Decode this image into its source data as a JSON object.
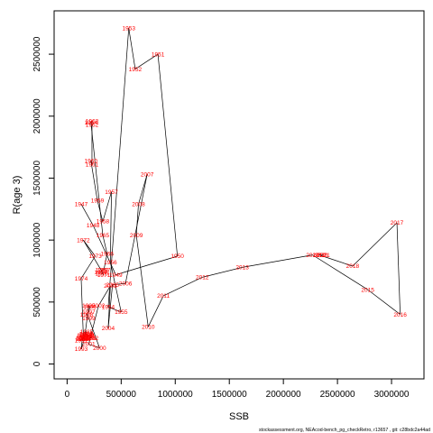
{
  "chart_data": {
    "type": "line",
    "title": "",
    "xlabel": "SSB",
    "ylabel": "R(age 3)",
    "xlim": [
      -120000,
      3300000
    ],
    "ylim": [
      -120000,
      2850000
    ],
    "x_ticks": [
      0,
      500000,
      1000000,
      1500000,
      2000000,
      2500000,
      3000000
    ],
    "y_ticks": [
      0,
      500000,
      1000000,
      1500000,
      2000000,
      2500000
    ],
    "grid": false,
    "line_color": "#000000",
    "label_color": "#ff0000",
    "points": [
      {
        "year": "1947",
        "x": 130000,
        "y": 1290000
      },
      {
        "year": "1948",
        "x": 240000,
        "y": 1120000
      },
      {
        "year": "1949",
        "x": 450000,
        "y": 720000
      },
      {
        "year": "1950",
        "x": 1020000,
        "y": 870000
      },
      {
        "year": "1951",
        "x": 840000,
        "y": 2500000
      },
      {
        "year": "1952",
        "x": 630000,
        "y": 2380000
      },
      {
        "year": "1953",
        "x": 570000,
        "y": 2710000
      },
      {
        "year": "1954",
        "x": 380000,
        "y": 460000
      },
      {
        "year": "1955",
        "x": 500000,
        "y": 420000
      },
      {
        "year": "1956",
        "x": 400000,
        "y": 820000
      },
      {
        "year": "1957",
        "x": 410000,
        "y": 1390000
      },
      {
        "year": "1958",
        "x": 330000,
        "y": 1150000
      },
      {
        "year": "1959",
        "x": 280000,
        "y": 1320000
      },
      {
        "year": "1960",
        "x": 220000,
        "y": 1640000
      },
      {
        "year": "1961",
        "x": 230000,
        "y": 1610000
      },
      {
        "year": "1962",
        "x": 230000,
        "y": 1930000
      },
      {
        "year": "1963",
        "x": 230000,
        "y": 1960000
      },
      {
        "year": "1964",
        "x": 220000,
        "y": 1950000
      },
      {
        "year": "1965",
        "x": 330000,
        "y": 1040000
      },
      {
        "year": "1966",
        "x": 370000,
        "y": 890000
      },
      {
        "year": "1967",
        "x": 340000,
        "y": 760000
      },
      {
        "year": "1968",
        "x": 320000,
        "y": 760000
      },
      {
        "year": "1969",
        "x": 310000,
        "y": 740000
      },
      {
        "year": "1970",
        "x": 320000,
        "y": 730000
      },
      {
        "year": "1971",
        "x": 340000,
        "y": 720000
      },
      {
        "year": "1972",
        "x": 150000,
        "y": 1000000
      },
      {
        "year": "1973",
        "x": 260000,
        "y": 870000
      },
      {
        "year": "1974",
        "x": 130000,
        "y": 690000
      },
      {
        "year": "1975",
        "x": 150000,
        "y": 230000
      },
      {
        "year": "1976",
        "x": 160000,
        "y": 230000
      },
      {
        "year": "1977",
        "x": 190000,
        "y": 230000
      },
      {
        "year": "1978",
        "x": 190000,
        "y": 230000
      },
      {
        "year": "1979",
        "x": 180000,
        "y": 240000
      },
      {
        "year": "1980",
        "x": 190000,
        "y": 230000
      },
      {
        "year": "1981",
        "x": 200000,
        "y": 220000
      },
      {
        "year": "1982",
        "x": 230000,
        "y": 210000
      },
      {
        "year": "1983",
        "x": 210000,
        "y": 210000
      },
      {
        "year": "1984",
        "x": 170000,
        "y": 240000
      },
      {
        "year": "1985",
        "x": 180000,
        "y": 260000
      },
      {
        "year": "1986",
        "x": 150000,
        "y": 220000
      },
      {
        "year": "1987",
        "x": 140000,
        "y": 200000
      },
      {
        "year": "1988",
        "x": 160000,
        "y": 200000
      },
      {
        "year": "1989",
        "x": 150000,
        "y": 210000
      },
      {
        "year": "1990",
        "x": 140000,
        "y": 210000
      },
      {
        "year": "1991",
        "x": 130000,
        "y": 190000
      },
      {
        "year": "1992",
        "x": 140000,
        "y": 200000
      },
      {
        "year": "1993",
        "x": 130000,
        "y": 120000
      },
      {
        "year": "1994",
        "x": 160000,
        "y": 200000
      },
      {
        "year": "1995",
        "x": 200000,
        "y": 470000
      },
      {
        "year": "1996",
        "x": 210000,
        "y": 460000
      },
      {
        "year": "1997",
        "x": 200000,
        "y": 420000
      },
      {
        "year": "1998",
        "x": 180000,
        "y": 400000
      },
      {
        "year": "1999",
        "x": 200000,
        "y": 370000
      },
      {
        "year": "2000",
        "x": 300000,
        "y": 130000
      },
      {
        "year": "2001",
        "x": 200000,
        "y": 160000
      },
      {
        "year": "2002",
        "x": 290000,
        "y": 470000
      },
      {
        "year": "2003",
        "x": 400000,
        "y": 630000
      },
      {
        "year": "2004",
        "x": 380000,
        "y": 290000
      },
      {
        "year": "2005",
        "x": 420000,
        "y": 640000
      },
      {
        "year": "2006",
        "x": 540000,
        "y": 650000
      },
      {
        "year": "2007",
        "x": 740000,
        "y": 1530000
      },
      {
        "year": "2008",
        "x": 660000,
        "y": 1290000
      },
      {
        "year": "2009",
        "x": 640000,
        "y": 1040000
      },
      {
        "year": "2010",
        "x": 750000,
        "y": 300000
      },
      {
        "year": "2011",
        "x": 890000,
        "y": 550000
      },
      {
        "year": "2012",
        "x": 1250000,
        "y": 700000
      },
      {
        "year": "2013",
        "x": 1620000,
        "y": 780000
      },
      {
        "year": "2014",
        "x": 2270000,
        "y": 880000
      },
      {
        "year": "2015",
        "x": 2780000,
        "y": 600000
      },
      {
        "year": "2016",
        "x": 3080000,
        "y": 400000
      },
      {
        "year": "2017",
        "x": 3050000,
        "y": 1140000
      },
      {
        "year": "2018",
        "x": 2640000,
        "y": 790000
      },
      {
        "year": "2019",
        "x": 2330000,
        "y": 880000
      },
      {
        "year": "2020",
        "x": 2350000,
        "y": 880000
      },
      {
        "year": "2021",
        "x": 2370000,
        "y": 880000
      }
    ]
  },
  "footer_text": "stockassessment.org, NEAcod-bench_pg_checkRetro, r13657 , git: c28bdc2a44ad"
}
